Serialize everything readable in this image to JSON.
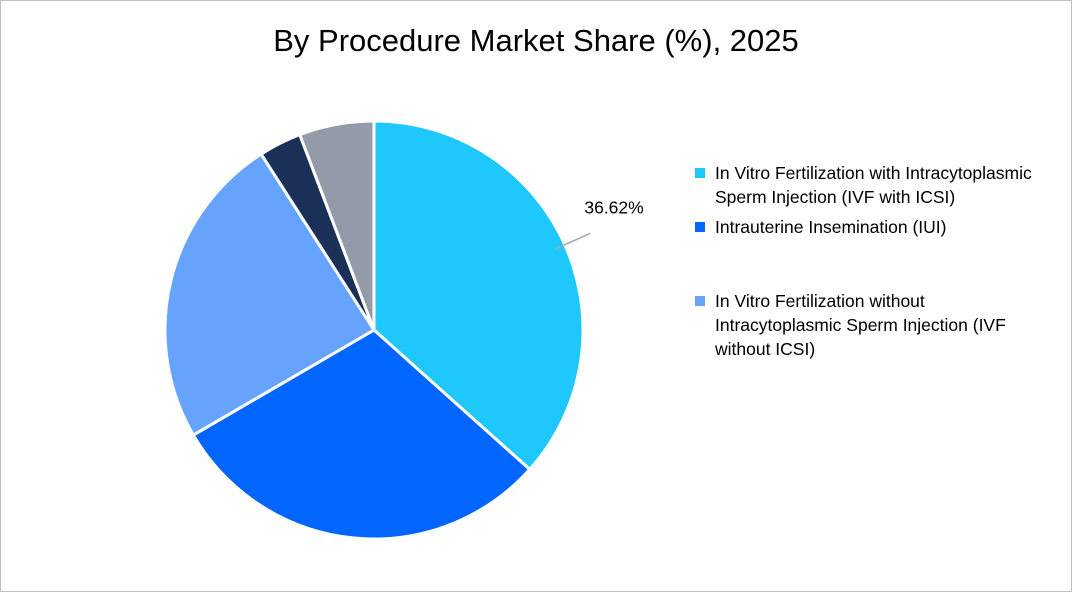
{
  "chart_data": {
    "type": "pie",
    "title": "By Procedure Market Share (%), 2025",
    "slices": [
      {
        "name": "In Vitro Fertilization with Intracytoplasmic Sperm Injection (IVF with ICSI)",
        "value": 36.62,
        "label": "36.62%",
        "color": "#1FC8FC",
        "in_legend": true
      },
      {
        "name": "Intrauterine Insemination (IUI)",
        "value": 30.0,
        "label": "",
        "color": "#0066FF",
        "in_legend": true
      },
      {
        "name": "In Vitro Fertilization without Intracytoplasmic Sperm Injection (IVF without ICSI)",
        "value": 24.3,
        "label": "",
        "color": "#66A3FF",
        "in_legend": true
      },
      {
        "name": "",
        "value": 3.3,
        "label": "",
        "color": "#1A3058",
        "in_legend": false
      },
      {
        "name": "",
        "value": 5.78,
        "label": "",
        "color": "#939BA8",
        "in_legend": false
      }
    ],
    "legend_position": "right"
  }
}
